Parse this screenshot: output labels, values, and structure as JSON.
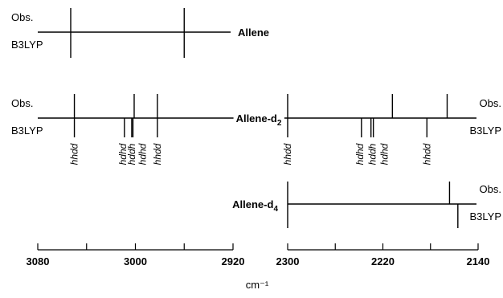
{
  "chart_data": {
    "type": "stick-spectrum",
    "xlabel": "cm⁻¹",
    "axes": [
      {
        "id": "left",
        "range": [
          3080,
          2920
        ],
        "ticks": [
          "3080",
          "3000",
          "2920"
        ]
      },
      {
        "id": "right",
        "range": [
          2300,
          2140
        ],
        "ticks": [
          "2300",
          "2220",
          "2140"
        ]
      }
    ],
    "molecules": [
      {
        "name": "Allene",
        "obs_label": "Obs.",
        "calc_label": "B3LYP",
        "obs_lines": [
          {
            "axis": "left",
            "x": 3053,
            "height": 1.0
          },
          {
            "axis": "left",
            "x": 2960,
            "height": 1.0
          }
        ],
        "calc_lines": [
          {
            "axis": "left",
            "x": 3053,
            "height": 1.0
          },
          {
            "axis": "left",
            "x": 2960,
            "height": 1.0
          }
        ]
      },
      {
        "name": "Allene-d",
        "name_sub": "2",
        "obs_label": "Obs.",
        "calc_label": "B3LYP",
        "obs_lines": [
          {
            "axis": "left",
            "x": 3050,
            "height": 1.0
          },
          {
            "axis": "left",
            "x": 3001,
            "height": 1.0
          },
          {
            "axis": "left",
            "x": 2982,
            "height": 1.0
          },
          {
            "axis": "right",
            "x": 2300,
            "height": 1.0
          },
          {
            "axis": "right",
            "x": 2212,
            "height": 1.0
          },
          {
            "axis": "right",
            "x": 2166,
            "height": 1.0
          }
        ],
        "calc_lines": [
          {
            "axis": "left",
            "x": 3050,
            "height": 1.0,
            "assignment": "hhdd"
          },
          {
            "axis": "left",
            "x": 3009,
            "height": 1.0,
            "assignment": "hdhd"
          },
          {
            "axis": "left",
            "x": 3003,
            "height": 1.0,
            "assignment": "hddh"
          },
          {
            "axis": "left",
            "x": 3002,
            "height": 1.0,
            "assignment": "hdhd"
          },
          {
            "axis": "left",
            "x": 2982,
            "height": 1.0,
            "assignment": "hhdd"
          },
          {
            "axis": "right",
            "x": 2300,
            "height": 1.0,
            "assignment": "hhdd"
          },
          {
            "axis": "right",
            "x": 2238,
            "height": 1.0,
            "assignment": "hdhd"
          },
          {
            "axis": "right",
            "x": 2230,
            "height": 1.0,
            "assignment": "hddh"
          },
          {
            "axis": "right",
            "x": 2228,
            "height": 1.0,
            "assignment": "hdhd"
          },
          {
            "axis": "right",
            "x": 2183,
            "height": 1.0,
            "assignment": "hhdd"
          }
        ]
      },
      {
        "name": "Allene-d",
        "name_sub": "4",
        "obs_label": "Obs.",
        "calc_label": "B3LYP",
        "obs_lines": [
          {
            "axis": "right",
            "x": 2300,
            "height": 1.0
          },
          {
            "axis": "right",
            "x": 2164,
            "height": 1.0
          }
        ],
        "calc_lines": [
          {
            "axis": "right",
            "x": 2300,
            "height": 1.0
          },
          {
            "axis": "right",
            "x": 2157,
            "height": 1.0
          }
        ]
      }
    ]
  }
}
